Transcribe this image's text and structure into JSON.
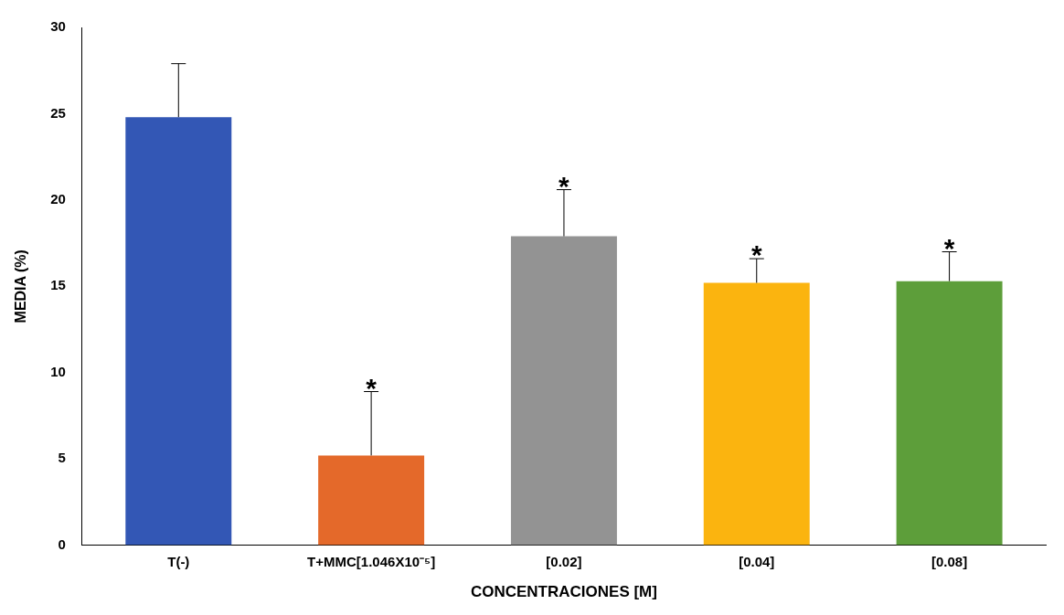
{
  "chart_data": {
    "type": "bar",
    "xlabel": "CONCENTRACIONES [M]",
    "ylabel": "MEDIA (%)",
    "categories": [
      "T(-)",
      "T+MMC[1.046X10⁻⁵]",
      "[0.02]",
      "[0.04]",
      "[0.08]"
    ],
    "values": [
      24.8,
      5.2,
      17.9,
      15.2,
      15.3
    ],
    "colors": [
      "#3357b5",
      "#e4692a",
      "#939393",
      "#fbb40f",
      "#5d9e3a"
    ],
    "errors": [
      [
        24.8,
        27.9
      ],
      [
        5.2,
        8.9
      ],
      [
        17.9,
        20.6
      ],
      [
        15.2,
        16.6
      ],
      [
        15.3,
        17.0
      ]
    ],
    "ylim": [
      0,
      30
    ],
    "yticks": [
      0,
      5,
      10,
      15,
      20,
      25,
      30
    ],
    "grid": false,
    "legend": false,
    "annotations": [
      {
        "text": "*",
        "x": "T+MMC[1.046X10⁻⁵]",
        "y": 8.9
      },
      {
        "text": "*",
        "x": "[0.02]",
        "y": 20.6
      },
      {
        "text": "*",
        "x": "[0.04]",
        "y": 16.6
      },
      {
        "text": "*",
        "x": "[0.08]",
        "y": 17.0
      }
    ]
  }
}
